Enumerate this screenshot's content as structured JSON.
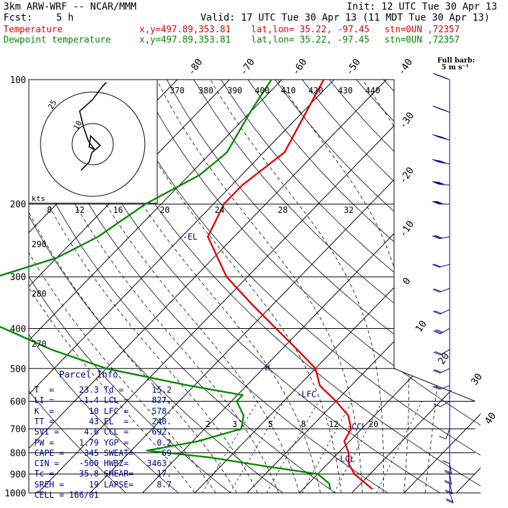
{
  "header": {
    "model": "3km ARW-WRF -- NCAR/MMM",
    "init": "Init: 12 UTC Tue 30 Apr 13",
    "fcst_label": "Fcst:",
    "fcst_value": "5 h",
    "valid": "Valid: 17 UTC Tue 30 Apr 13 (11 MDT Tue 30 Apr 13)",
    "temperature_label": "Temperature",
    "dewpoint_label": "Dewpoint temperature",
    "xy": "x,y=497.89,353.81",
    "latlon": "lat,lon= 35.22, -97.45",
    "stn": "stn=0UN ,72357"
  },
  "barb_legend": {
    "line1": "Full barb:",
    "line2": "5 m s⁻¹"
  },
  "hodograph": {
    "label_kts": "kts",
    "ring_labels": [
      "25",
      "10"
    ]
  },
  "parcel_info": {
    "title": "Parcel Info",
    "rows": [
      {
        "k1": "T  =",
        "v1": "23.3",
        "k2": "Td =",
        "v2": "15.2"
      },
      {
        "k1": "LI =",
        "v1": "-1.4",
        "k2": "LCL =",
        "v2": "827."
      },
      {
        "k1": "K  =",
        "v1": "10",
        "k2": "LFC =",
        "v2": "578."
      },
      {
        "k1": "TT =",
        "v1": "43",
        "k2": "EL  =",
        "v2": "240."
      },
      {
        "k1": "SVI =",
        "v1": "4.6",
        "k2": "CCL =",
        "v2": "692."
      },
      {
        "k1": "PW =",
        "v1": "1.79",
        "k2": "YGP =",
        "v2": "0.2"
      },
      {
        "k1": "CAPE =",
        "v1": "345",
        "k2": "SWEAT=",
        "v2": "69"
      },
      {
        "k1": "CIN =",
        "v1": "-560",
        "k2": "HWBZ=",
        "v2": "3463."
      },
      {
        "k1": "Tc =",
        "v1": "35.8",
        "k2": "SHEAR=",
        "v2": "17."
      },
      {
        "k1": "SREH =",
        "v1": "19",
        "k2": "LAPSE=",
        "v2": "8.7"
      },
      {
        "k1": "CELL =",
        "v1": "166/01",
        "k2": "",
        "v2": ""
      }
    ]
  },
  "chart_data": {
    "type": "line",
    "pressure_levels": [
      100,
      200,
      300,
      400,
      500,
      600,
      700,
      800,
      900,
      1000
    ],
    "pressure_labels": [
      "100",
      "200",
      "300",
      "400",
      "500",
      "600",
      "700",
      "800",
      "900",
      "1000"
    ],
    "isotherms": [
      -80,
      -70,
      -60,
      -50,
      -40,
      -30,
      -20,
      -10,
      0,
      10,
      20,
      30,
      40
    ],
    "isotherm_labels_top": [
      "-80",
      "-70",
      "-60",
      "-50",
      "-40"
    ],
    "isotherm_labels_right": [
      "-30",
      "-20",
      "-10",
      "0",
      "10",
      "20",
      "30",
      "40"
    ],
    "theta_e_labels": [
      "370",
      "380",
      "390",
      "400",
      "410",
      "420",
      "430",
      "440"
    ],
    "theta_labels": [
      "290",
      "280",
      "270"
    ],
    "mixing_ratio_labels_upper": [
      "8",
      "12",
      "16",
      "20",
      "24",
      "28",
      "32"
    ],
    "mixing_ratio_labels_lower": [
      "2",
      "3",
      "5",
      "8",
      "12",
      "20"
    ],
    "levels_marked": [
      {
        "label": "EL",
        "pressure": 240
      },
      {
        "label": "LFC",
        "pressure": 578
      },
      {
        "label": "CCL",
        "pressure": 692
      },
      {
        "label": "LCL",
        "pressure": 827
      }
    ],
    "series": [
      {
        "name": "Temperature",
        "color": "#e00000",
        "points": [
          [
            100,
            -62
          ],
          [
            150,
            -56
          ],
          [
            180,
            -58
          ],
          [
            200,
            -58
          ],
          [
            240,
            -55
          ],
          [
            300,
            -44
          ],
          [
            350,
            -34
          ],
          [
            400,
            -25
          ],
          [
            450,
            -17
          ],
          [
            500,
            -10
          ],
          [
            550,
            -6
          ],
          [
            600,
            0
          ],
          [
            650,
            5
          ],
          [
            700,
            8
          ],
          [
            750,
            9
          ],
          [
            800,
            12
          ],
          [
            850,
            14
          ],
          [
            900,
            17
          ],
          [
            950,
            21
          ],
          [
            980,
            23.3
          ]
        ]
      },
      {
        "name": "Dewpoint temperature",
        "color": "#008800",
        "points": [
          [
            100,
            -72
          ],
          [
            120,
            -70
          ],
          [
            150,
            -67
          ],
          [
            170,
            -68
          ],
          [
            200,
            -73
          ],
          [
            240,
            -76
          ],
          [
            270,
            -80
          ],
          [
            300,
            -88
          ],
          [
            330,
            -94
          ],
          [
            360,
            -89
          ],
          [
            400,
            -77
          ],
          [
            450,
            -64
          ],
          [
            500,
            -50
          ],
          [
            550,
            -31
          ],
          [
            580,
            -19
          ],
          [
            600,
            -19
          ],
          [
            650,
            -15
          ],
          [
            700,
            -13
          ],
          [
            750,
            -19
          ],
          [
            790,
            -27
          ],
          [
            820,
            -14
          ],
          [
            860,
            -2
          ],
          [
            900,
            10
          ],
          [
            950,
            14
          ],
          [
            980,
            15.2
          ]
        ]
      }
    ],
    "wind_barbs_ms": [
      {
        "p": 100,
        "dir": 290,
        "spd": 38
      },
      {
        "p": 120,
        "dir": 290,
        "spd": 36
      },
      {
        "p": 140,
        "dir": 285,
        "spd": 33
      },
      {
        "p": 160,
        "dir": 280,
        "spd": 30
      },
      {
        "p": 180,
        "dir": 275,
        "spd": 24
      },
      {
        "p": 200,
        "dir": 270,
        "spd": 18
      },
      {
        "p": 240,
        "dir": 260,
        "spd": 14
      },
      {
        "p": 280,
        "dir": 255,
        "spd": 12
      },
      {
        "p": 320,
        "dir": 250,
        "spd": 10
      },
      {
        "p": 360,
        "dir": 245,
        "spd": 12
      },
      {
        "p": 400,
        "dir": 240,
        "spd": 14
      },
      {
        "p": 450,
        "dir": 240,
        "spd": 12
      },
      {
        "p": 500,
        "dir": 245,
        "spd": 10
      },
      {
        "p": 550,
        "dir": 250,
        "spd": 8
      },
      {
        "p": 600,
        "dir": 240,
        "spd": 5
      },
      {
        "p": 700,
        "dir": 200,
        "spd": 4
      },
      {
        "p": 800,
        "dir": 180,
        "spd": 6
      },
      {
        "p": 850,
        "dir": 170,
        "spd": 8
      },
      {
        "p": 900,
        "dir": 170,
        "spd": 10
      },
      {
        "p": 950,
        "dir": 165,
        "spd": 10
      },
      {
        "p": 1000,
        "dir": 160,
        "spd": 8
      }
    ]
  }
}
